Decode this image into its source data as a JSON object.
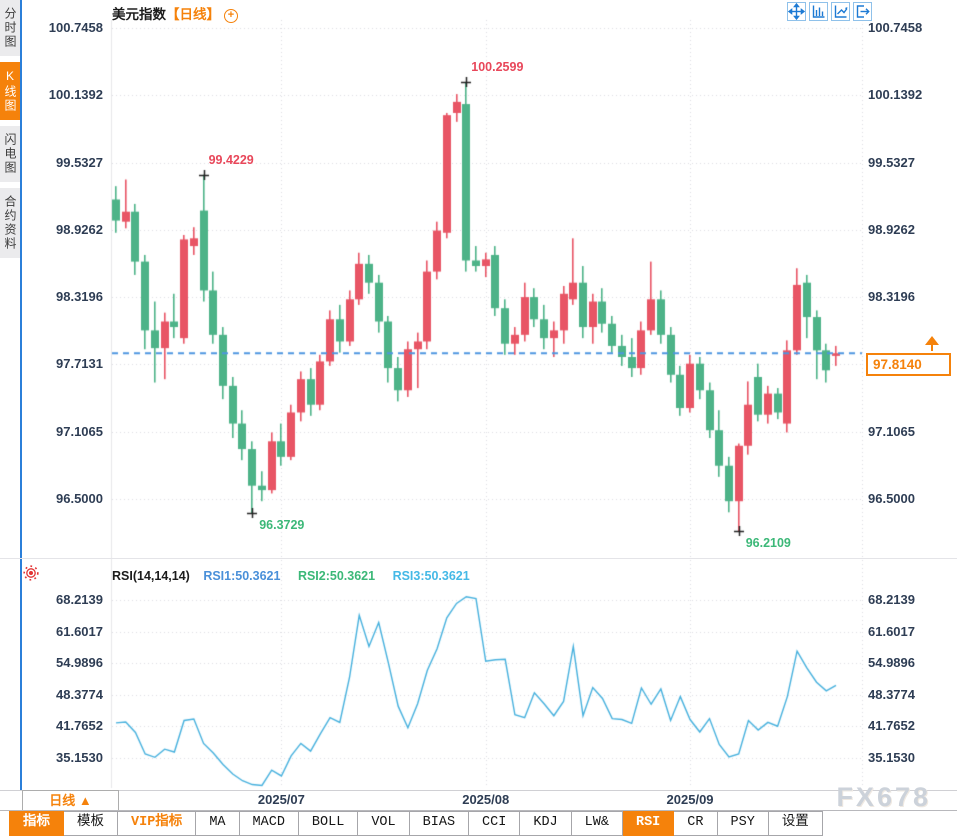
{
  "window_title": "美元指数 日线图表",
  "colors": {
    "up": "#e85565",
    "down": "#4db388",
    "accent_orange": "#f5820b",
    "axis_text": "#2e3d54",
    "grid": "#dcdce2",
    "dashed_line": "#4e96e0",
    "rsi_line": "#45b0dd",
    "annotation_high": "#e8475a",
    "annotation_low": "#3cb878",
    "sidebar_border_blue": "#2b7fd9",
    "icon_blue": "#1d7ad4",
    "cross_marker": "#222222",
    "watermark_grey": "#ccd2da"
  },
  "sidebar": {
    "items": [
      {
        "label": "分时图",
        "selected": false
      },
      {
        "label": "K线图",
        "selected": true
      },
      {
        "label": "闪电图",
        "selected": false
      },
      {
        "label": "合约资料",
        "selected": false
      }
    ]
  },
  "header": {
    "title": "美元指数",
    "period_tag": "【日线】",
    "plus_glyph": "+"
  },
  "top_icons": [
    "crosshair-move-icon",
    "axis-scale-icon",
    "axis-pan-icon",
    "export-chart-icon"
  ],
  "x_axis": {
    "period_label": "日线",
    "period_arrow": "▲",
    "months": [
      {
        "label": "2025/07",
        "candle_index": 17
      },
      {
        "label": "2025/08",
        "candle_index": 38
      },
      {
        "label": "2025/09",
        "candle_index": 59
      }
    ]
  },
  "toolbar": {
    "tabs": [
      {
        "label": "指标",
        "style": "selected"
      },
      {
        "label": "模板",
        "style": "normal"
      },
      {
        "label": "VIP指标",
        "style": "vip"
      },
      {
        "label": "MA",
        "style": "normal"
      },
      {
        "label": "MACD",
        "style": "normal"
      },
      {
        "label": "BOLL",
        "style": "normal"
      },
      {
        "label": "VOL",
        "style": "normal"
      },
      {
        "label": "BIAS",
        "style": "normal"
      },
      {
        "label": "CCI",
        "style": "normal"
      },
      {
        "label": "KDJ",
        "style": "normal"
      },
      {
        "label": "LW&",
        "style": "normal"
      },
      {
        "label": "RSI",
        "style": "selected"
      },
      {
        "label": "CR",
        "style": "normal"
      },
      {
        "label": "PSY",
        "style": "normal"
      },
      {
        "label": "设置",
        "style": "normal"
      }
    ]
  },
  "watermark": "FX678",
  "chart_data": [
    {
      "type": "candlestick",
      "title": "美元指数【日线】",
      "ylim": [
        96.5,
        100.7458
      ],
      "yticks": [
        100.7458,
        100.1392,
        99.5327,
        98.9262,
        98.3196,
        97.7131,
        97.1065,
        96.5
      ],
      "ytick_labels": [
        "100.7458",
        "100.1392",
        "99.5327",
        "98.9262",
        "98.3196",
        "97.7131",
        "97.1065",
        "96.5000"
      ],
      "last_price": "97.8140",
      "last_price_value": 97.814,
      "annotations": [
        {
          "candle_index": 9,
          "price": 99.4229,
          "text": "99.4229",
          "type": "high",
          "placement": "above"
        },
        {
          "candle_index": 36,
          "price": 100.2599,
          "text": "100.2599",
          "type": "high",
          "placement": "above"
        },
        {
          "candle_index": 14,
          "price": 96.3729,
          "text": "96.3729",
          "type": "low",
          "placement": "below"
        },
        {
          "candle_index": 64,
          "price": 96.2109,
          "text": "96.2109",
          "type": "low",
          "placement": "below"
        }
      ],
      "ohlc": [
        [
          99.2,
          99.32,
          98.9,
          99.01
        ],
        [
          99.0,
          99.38,
          98.94,
          99.09
        ],
        [
          99.09,
          99.16,
          98.52,
          98.64
        ],
        [
          98.64,
          98.7,
          97.85,
          98.02
        ],
        [
          98.02,
          98.28,
          97.55,
          97.86
        ],
        [
          97.86,
          98.18,
          97.58,
          98.1
        ],
        [
          98.1,
          98.35,
          97.95,
          98.05
        ],
        [
          97.95,
          98.88,
          97.9,
          98.84
        ],
        [
          98.78,
          98.95,
          98.7,
          98.85
        ],
        [
          99.1,
          99.4229,
          98.28,
          98.38
        ],
        [
          98.38,
          98.55,
          97.9,
          97.98
        ],
        [
          97.98,
          98.05,
          97.4,
          97.52
        ],
        [
          97.52,
          97.6,
          97.05,
          97.18
        ],
        [
          97.18,
          97.3,
          96.85,
          96.95
        ],
        [
          96.95,
          97.02,
          96.3729,
          96.62
        ],
        [
          96.62,
          96.75,
          96.48,
          96.58
        ],
        [
          96.58,
          97.1,
          96.55,
          97.02
        ],
        [
          97.02,
          97.18,
          96.8,
          96.88
        ],
        [
          96.88,
          97.35,
          96.85,
          97.28
        ],
        [
          97.28,
          97.65,
          97.2,
          97.58
        ],
        [
          97.58,
          97.68,
          97.25,
          97.35
        ],
        [
          97.35,
          97.8,
          97.3,
          97.74
        ],
        [
          97.74,
          98.2,
          97.7,
          98.12
        ],
        [
          98.12,
          98.25,
          97.82,
          97.92
        ],
        [
          97.92,
          98.38,
          97.88,
          98.3
        ],
        [
          98.3,
          98.72,
          98.25,
          98.62
        ],
        [
          98.62,
          98.7,
          98.35,
          98.45
        ],
        [
          98.45,
          98.52,
          98.0,
          98.1
        ],
        [
          98.1,
          98.15,
          97.55,
          97.68
        ],
        [
          97.68,
          97.78,
          97.38,
          97.48
        ],
        [
          97.48,
          97.92,
          97.42,
          97.85
        ],
        [
          97.85,
          98.0,
          97.5,
          97.92
        ],
        [
          97.92,
          98.65,
          97.85,
          98.55
        ],
        [
          98.55,
          99.0,
          98.48,
          98.92
        ],
        [
          98.9,
          99.98,
          98.85,
          99.96
        ],
        [
          99.98,
          100.15,
          99.9,
          100.08
        ],
        [
          100.06,
          100.2599,
          98.55,
          98.65
        ],
        [
          98.65,
          98.78,
          98.55,
          98.6
        ],
        [
          98.6,
          98.72,
          98.5,
          98.66
        ],
        [
          98.7,
          98.78,
          98.15,
          98.22
        ],
        [
          98.22,
          98.3,
          97.8,
          97.9
        ],
        [
          97.9,
          98.05,
          97.8,
          97.98
        ],
        [
          97.98,
          98.45,
          97.92,
          98.32
        ],
        [
          98.32,
          98.4,
          98.05,
          98.12
        ],
        [
          98.12,
          98.25,
          97.85,
          97.95
        ],
        [
          97.95,
          98.1,
          97.78,
          98.02
        ],
        [
          98.02,
          98.42,
          97.9,
          98.35
        ],
        [
          98.3,
          98.85,
          98.25,
          98.45
        ],
        [
          98.45,
          98.6,
          97.95,
          98.05
        ],
        [
          98.05,
          98.35,
          97.9,
          98.28
        ],
        [
          98.28,
          98.4,
          98.0,
          98.08
        ],
        [
          98.08,
          98.15,
          97.82,
          97.88
        ],
        [
          97.88,
          97.98,
          97.7,
          97.78
        ],
        [
          97.78,
          97.95,
          97.6,
          97.68
        ],
        [
          97.68,
          98.1,
          97.62,
          98.02
        ],
        [
          98.02,
          98.64,
          97.98,
          98.3
        ],
        [
          98.3,
          98.38,
          97.9,
          97.98
        ],
        [
          97.98,
          98.05,
          97.55,
          97.62
        ],
        [
          97.62,
          97.7,
          97.25,
          97.32
        ],
        [
          97.32,
          97.8,
          97.28,
          97.72
        ],
        [
          97.72,
          97.78,
          97.4,
          97.48
        ],
        [
          97.48,
          97.55,
          97.05,
          97.12
        ],
        [
          97.12,
          97.3,
          96.7,
          96.8
        ],
        [
          96.8,
          96.88,
          96.38,
          96.48
        ],
        [
          96.48,
          97.0,
          96.2109,
          96.98
        ],
        [
          96.98,
          97.56,
          96.9,
          97.35
        ],
        [
          97.6,
          97.72,
          97.2,
          97.26
        ],
        [
          97.26,
          97.52,
          97.18,
          97.45
        ],
        [
          97.45,
          97.5,
          97.22,
          97.28
        ],
        [
          97.18,
          97.93,
          97.1,
          97.84
        ],
        [
          97.84,
          98.58,
          97.8,
          98.43
        ],
        [
          98.45,
          98.52,
          97.95,
          98.14
        ],
        [
          98.14,
          98.2,
          97.58,
          97.84
        ],
        [
          97.84,
          97.9,
          97.55,
          97.66
        ],
        [
          97.79,
          97.88,
          97.7,
          97.814
        ]
      ]
    },
    {
      "type": "line",
      "title": "RSI(14,14,14)",
      "series_labels": [
        {
          "text": "RSI1:50.3621",
          "color": "#4a90d9"
        },
        {
          "text": "RSI2:50.3621",
          "color": "#3cb878"
        },
        {
          "text": "RSI3:50.3621",
          "color": "#45b9e6"
        }
      ],
      "ylim": [
        35.153,
        68.2139
      ],
      "yticks": [
        68.2139,
        61.6017,
        54.9896,
        48.3774,
        41.7652,
        35.153
      ],
      "ytick_labels": [
        "68.2139",
        "61.6017",
        "54.9896",
        "48.3774",
        "41.7652",
        "35.1530"
      ],
      "values": [
        42.5,
        42.7,
        40.5,
        36.0,
        35.3,
        37.0,
        36.4,
        43.0,
        43.3,
        38.2,
        36.2,
        33.8,
        31.8,
        30.4,
        29.6,
        29.4,
        32.6,
        31.4,
        35.6,
        38.2,
        36.6,
        40.2,
        43.6,
        42.6,
        52.0,
        65.0,
        58.5,
        63.5,
        55.0,
        46.0,
        41.5,
        46.5,
        53.5,
        58.0,
        64.5,
        67.5,
        68.9,
        68.5,
        55.4,
        55.7,
        55.8,
        44.2,
        43.6,
        48.8,
        46.5,
        44.0,
        47.0,
        58.5,
        44.0,
        49.9,
        47.6,
        43.4,
        43.2,
        42.4,
        49.8,
        46.4,
        49.6,
        43.0,
        48.0,
        43.2,
        40.6,
        43.4,
        38.0,
        35.4,
        36.0,
        43.0,
        41.0,
        42.6,
        41.8,
        48.0,
        57.5,
        54.0,
        51.0,
        49.2,
        50.3621
      ]
    }
  ]
}
